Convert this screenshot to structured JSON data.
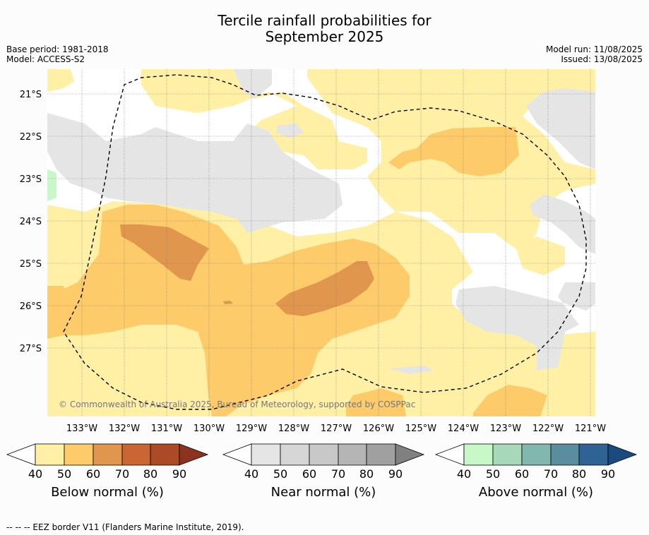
{
  "title_line1": "Tercile rainfall probabilities for",
  "title_line2": "September 2025",
  "meta_left": {
    "base_period": "Base period: 1981-2018",
    "model": "Model: ACCESS-S2"
  },
  "meta_right": {
    "model_run": "Model run: 11/08/2025",
    "issued": "Issued: 13/08/2025"
  },
  "lat_labels": [
    "21°S",
    "22°S",
    "23°S",
    "24°S",
    "25°S",
    "26°S",
    "27°S"
  ],
  "lon_labels": [
    "133°W",
    "132°W",
    "131°W",
    "130°W",
    "129°W",
    "128°W",
    "127°W",
    "126°W",
    "125°W",
    "124°W",
    "123°W",
    "122°W",
    "121°W"
  ],
  "copyright": "© Commonwealth of Australia 2025, Bureau of Meteorology, supported by COSPPac",
  "colorbars": [
    {
      "title": "Below normal (%)",
      "ticks": [
        "40",
        "50",
        "60",
        "70",
        "80",
        "90"
      ],
      "colors": [
        "#fff0a6",
        "#fdcb69",
        "#e0964c",
        "#cb6533",
        "#ac4a26",
        "#8c3320"
      ]
    },
    {
      "title": "Near normal (%)",
      "ticks": [
        "40",
        "50",
        "60",
        "70",
        "80",
        "90"
      ],
      "colors": [
        "#e5e5e5",
        "#d6d6d6",
        "#c8c8c8",
        "#b5b5b5",
        "#a0a0a0",
        "#808080"
      ]
    },
    {
      "title": "Above normal (%)",
      "ticks": [
        "40",
        "50",
        "60",
        "70",
        "80",
        "90"
      ],
      "colors": [
        "#c8f7c8",
        "#a6d8b9",
        "#82b7b0",
        "#5a8e9e",
        "#2f6295",
        "#1a4a7e"
      ]
    }
  ],
  "footer": "--  --  -- EEZ border V11 (Flanders Marine Institute, 2019).",
  "colors": {
    "below_40": "#fff0a6",
    "below_50": "#fdcb69",
    "below_60": "#e0964c",
    "near_40": "#e5e5e5",
    "above_40": "#c8f7c8"
  }
}
